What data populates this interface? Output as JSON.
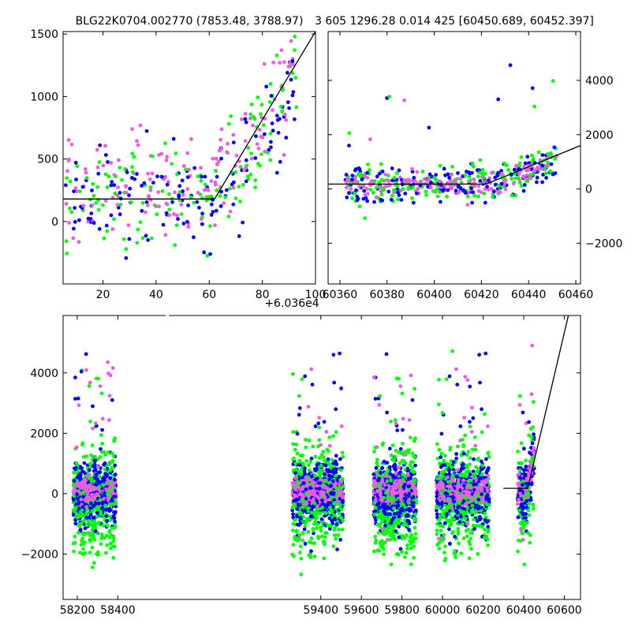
{
  "figure": {
    "title_left": "BLG22K0704.002770 (7853.48, 3788.97)",
    "title_right": "3 605 1296.28 0.014 425 [60450.689, 60452.397]",
    "offset_label": "+6.036e4"
  },
  "colors": {
    "green": "#00ff00",
    "blue": "#0000ff",
    "magenta": "#ee5ce4",
    "model": "#000000"
  },
  "chart_data": [
    {
      "type": "scatter",
      "name": "zoom-left",
      "xlim": [
        5,
        100
      ],
      "ylim": [
        -500,
        1520
      ],
      "xticks": [
        20,
        40,
        60,
        80,
        100
      ],
      "xtick_labels": [
        "20",
        "40",
        "60",
        "80",
        "100"
      ],
      "yticks": [
        0,
        500,
        1000,
        1500
      ],
      "ytick_labels": [
        "0",
        "500",
        "1000",
        "1500"
      ],
      "model_line": [
        [
          5,
          180
        ],
        [
          62,
          180
        ],
        [
          100,
          1520
        ]
      ]
    },
    {
      "type": "scatter",
      "name": "zoom-right",
      "xlim": [
        60355,
        60462
      ],
      "ylim": [
        -3500,
        5800
      ],
      "xticks": [
        60360,
        60380,
        60400,
        60420,
        60440,
        60460
      ],
      "xtick_labels": [
        "60360",
        "60380",
        "60400",
        "60420",
        "60440",
        "60460"
      ],
      "yticks": [
        -2000,
        0,
        2000,
        4000
      ],
      "ytick_labels": [
        "−2000",
        "0",
        "2000",
        "4000"
      ],
      "model_line": [
        [
          60355,
          180
        ],
        [
          60422,
          180
        ],
        [
          60462,
          1600
        ]
      ]
    },
    {
      "type": "scatter",
      "name": "full-lightcurve",
      "xlim": [
        58130,
        60680
      ],
      "ylim": [
        -3500,
        5900
      ],
      "xticks": [
        58200,
        58400,
        59400,
        59600,
        59800,
        60000,
        60200,
        60400,
        60600
      ],
      "xtick_labels": [
        "58200",
        "58400",
        "59400",
        "59600",
        "59800",
        "60000",
        "60200",
        "60400",
        "60600"
      ],
      "yticks": [
        -2000,
        0,
        2000,
        4000
      ],
      "ytick_labels": [
        "−2000",
        "0",
        "2000",
        "4000"
      ],
      "axis_break": [
        58460,
        59220
      ],
      "seasons": [
        [
          58180,
          58390
        ],
        [
          59260,
          59510
        ],
        [
          59660,
          59870
        ],
        [
          59970,
          60230
        ],
        [
          60370,
          60452
        ]
      ],
      "model_line": [
        [
          60300,
          180
        ],
        [
          60420,
          180
        ],
        [
          60620,
          5900
        ]
      ]
    }
  ]
}
